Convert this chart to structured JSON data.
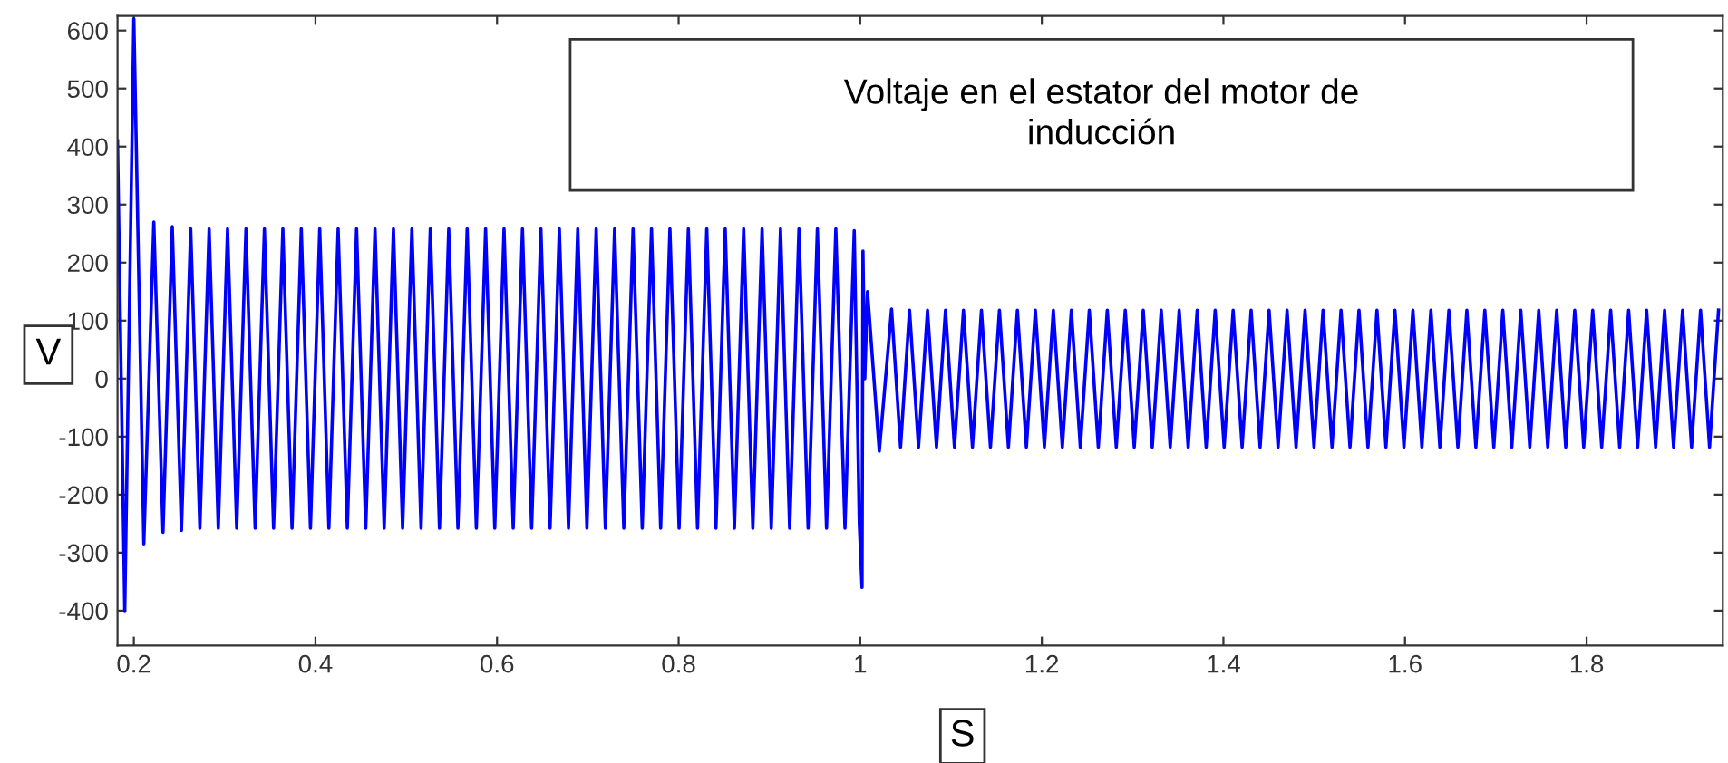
{
  "chart_data": {
    "type": "line",
    "title": "Voltaje en el estator del motor de\ninducción",
    "xlabel": "S",
    "ylabel": "V",
    "xlim": [
      0.182,
      1.95
    ],
    "xticks": [
      0.2,
      0.4,
      0.6,
      0.8,
      1,
      1.2,
      1.4,
      1.6,
      1.8
    ],
    "ylim": [
      -460,
      625
    ],
    "yticks": [
      -400,
      -300,
      -200,
      -100,
      0,
      100,
      200,
      300,
      400,
      500,
      600
    ],
    "grid": false,
    "legend": false,
    "marker": "none",
    "line_style": "solid",
    "series": [
      {
        "color": "#0000ff",
        "x": [
          0.182,
          0.19,
          0.2,
          0.211,
          0.222,
          0.2321,
          0.2423,
          0.2524,
          0.2626,
          0.2727,
          0.2829,
          0.293,
          0.3032,
          0.3133,
          0.3235,
          0.3336,
          0.3438,
          0.3539,
          0.3641,
          0.3742,
          0.3844,
          0.3945,
          0.4047,
          0.4148,
          0.425,
          0.4351,
          0.4453,
          0.4554,
          0.4656,
          0.4757,
          0.4859,
          0.496,
          0.5062,
          0.5163,
          0.5265,
          0.5366,
          0.5468,
          0.5569,
          0.5671,
          0.5772,
          0.5874,
          0.5975,
          0.6077,
          0.6178,
          0.628,
          0.6381,
          0.6483,
          0.6584,
          0.6686,
          0.6787,
          0.6889,
          0.699,
          0.7092,
          0.7193,
          0.7295,
          0.7396,
          0.7498,
          0.7599,
          0.7701,
          0.7802,
          0.7904,
          0.8005,
          0.8107,
          0.8208,
          0.831,
          0.8411,
          0.8513,
          0.8614,
          0.8716,
          0.8817,
          0.8919,
          0.902,
          0.9122,
          0.9223,
          0.9325,
          0.9426,
          0.9528,
          0.9629,
          0.9731,
          0.9832,
          0.9934,
          0.999,
          1.002,
          1.003,
          1.005,
          1.008,
          1.021,
          1.0345,
          1.0444,
          1.0543,
          1.0642,
          1.0741,
          1.084,
          1.0939,
          1.1038,
          1.1137,
          1.1236,
          1.1335,
          1.1434,
          1.1533,
          1.1632,
          1.1731,
          1.183,
          1.1929,
          1.2028,
          1.2127,
          1.2226,
          1.2325,
          1.2424,
          1.2523,
          1.2622,
          1.2721,
          1.282,
          1.2919,
          1.3018,
          1.3117,
          1.3216,
          1.3315,
          1.3414,
          1.3513,
          1.3612,
          1.3711,
          1.381,
          1.3909,
          1.4008,
          1.4107,
          1.4206,
          1.4305,
          1.4404,
          1.4503,
          1.4602,
          1.4701,
          1.48,
          1.4899,
          1.4998,
          1.5097,
          1.5196,
          1.5295,
          1.5394,
          1.5493,
          1.5592,
          1.5691,
          1.579,
          1.5889,
          1.5988,
          1.6087,
          1.6186,
          1.6285,
          1.6384,
          1.6483,
          1.6582,
          1.6681,
          1.678,
          1.6879,
          1.6978,
          1.7077,
          1.7176,
          1.7275,
          1.7374,
          1.7473,
          1.7572,
          1.7671,
          1.777,
          1.7869,
          1.7968,
          1.8067,
          1.8166,
          1.8265,
          1.8364,
          1.8463,
          1.8562,
          1.8661,
          1.876,
          1.8859,
          1.8958,
          1.9057,
          1.9156,
          1.9255,
          1.9354,
          1.9453
        ],
        "values": [
          410,
          -400,
          620,
          -285,
          270,
          -265,
          262,
          -262,
          258,
          -258,
          258,
          -258,
          258,
          -258,
          258,
          -258,
          258,
          -258,
          258,
          -258,
          258,
          -258,
          258,
          -258,
          258,
          -258,
          258,
          -258,
          258,
          -258,
          258,
          -258,
          258,
          -258,
          258,
          -258,
          258,
          -258,
          258,
          -258,
          258,
          -258,
          258,
          -258,
          258,
          -258,
          258,
          -258,
          258,
          -258,
          258,
          -258,
          258,
          -258,
          258,
          -258,
          258,
          -258,
          258,
          -258,
          258,
          -258,
          258,
          -258,
          258,
          -258,
          258,
          -258,
          258,
          -258,
          258,
          -258,
          258,
          -258,
          258,
          -258,
          258,
          -258,
          258,
          -258,
          255,
          -250,
          -360,
          220,
          0,
          150,
          -125,
          120,
          -118,
          118,
          -118,
          118,
          -118,
          118,
          -118,
          118,
          -118,
          118,
          -118,
          118,
          -118,
          118,
          -118,
          118,
          -118,
          118,
          -118,
          118,
          -118,
          118,
          -118,
          118,
          -118,
          118,
          -118,
          118,
          -118,
          118,
          -118,
          118,
          -118,
          118,
          -118,
          118,
          -118,
          118,
          -118,
          118,
          -118,
          118,
          -118,
          118,
          -118,
          118,
          -118,
          118,
          -118,
          118,
          -118,
          118,
          -118,
          118,
          -118,
          118,
          -118,
          118,
          -118,
          118,
          -118,
          118,
          -118,
          118,
          -118,
          118,
          -118,
          118,
          -118,
          118,
          -118,
          118,
          -118,
          118,
          -118,
          118,
          -118,
          118,
          -118,
          118,
          -118,
          118,
          -118,
          118,
          -118,
          118,
          -118,
          118,
          -118,
          118,
          -118,
          118
        ]
      }
    ]
  }
}
